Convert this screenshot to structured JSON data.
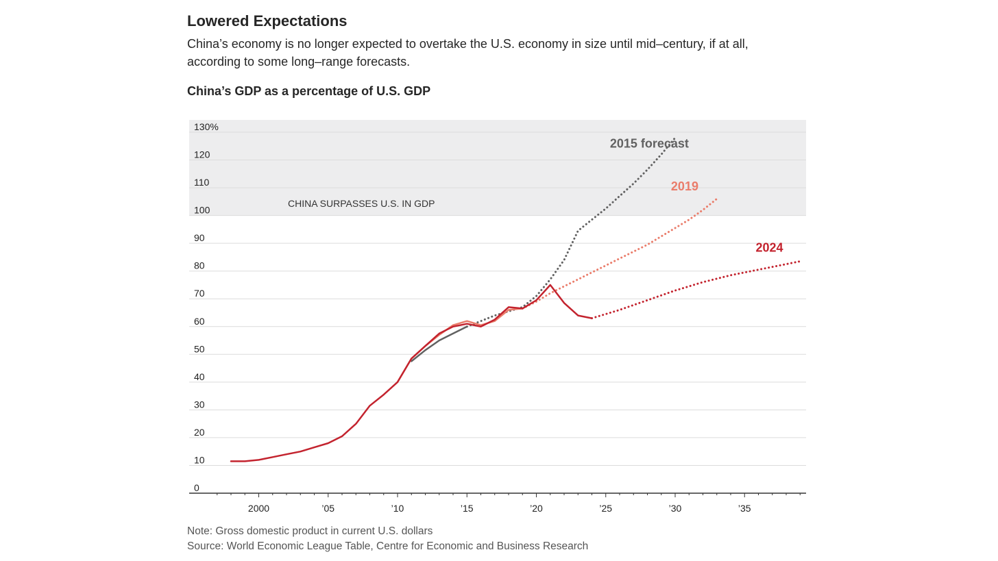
{
  "header": {
    "headline": "Lowered Expectations",
    "dek": "China’s economy is no longer expected to overtake the U.S. economy in size until mid–century, if at all, according to some long–range forecasts.",
    "chart_title": "China’s GDP as a percentage of U.S. GDP"
  },
  "footer": {
    "note": "Note: Gross domestic product in current U.S. dollars",
    "source": "Source: World Economic League Table, Centre for Economic and Business Research"
  },
  "chart_data": {
    "type": "line",
    "title": "China’s GDP as a percentage of U.S. GDP",
    "xlabel": "",
    "ylabel": "",
    "xlim": [
      1996.8,
      2039.5
    ],
    "ylim": [
      0,
      130
    ],
    "y_ticks": [
      {
        "value": 130,
        "label": "130%"
      },
      {
        "value": 120,
        "label": "120"
      },
      {
        "value": 110,
        "label": "110"
      },
      {
        "value": 100,
        "label": "100"
      },
      {
        "value": 90,
        "label": "90"
      },
      {
        "value": 80,
        "label": "80"
      },
      {
        "value": 70,
        "label": "70"
      },
      {
        "value": 60,
        "label": "60"
      },
      {
        "value": 50,
        "label": "50"
      },
      {
        "value": 40,
        "label": "40"
      },
      {
        "value": 30,
        "label": "30"
      },
      {
        "value": 20,
        "label": "20"
      },
      {
        "value": 10,
        "label": "10"
      },
      {
        "value": 0,
        "label": "0"
      }
    ],
    "x_ticks": [
      {
        "value": 2000,
        "label": "2000"
      },
      {
        "value": 2005,
        "label": "’05"
      },
      {
        "value": 2010,
        "label": "’10"
      },
      {
        "value": 2015,
        "label": "’15"
      },
      {
        "value": 2020,
        "label": "’20"
      },
      {
        "value": 2025,
        "label": "’25"
      },
      {
        "value": 2030,
        "label": "’30"
      },
      {
        "value": 2035,
        "label": "’35"
      }
    ],
    "grid": true,
    "shaded_region": {
      "y_from": 100,
      "y_to": 135,
      "label": "CHINA SURPASSES U.S. IN GDP",
      "color": "#ededee"
    },
    "colors": {
      "forecast_2015": "#616161",
      "forecast_2019": "#ea7c6a",
      "forecast_2024": "#c3232e",
      "grid": "#dcdcdc",
      "axis": "#333333"
    },
    "series": [
      {
        "name": "2015 forecast",
        "color": "#616161",
        "actual": {
          "x": [
            2011,
            2012,
            2013,
            2014,
            2015
          ],
          "y": [
            47.5,
            51.5,
            55,
            57.5,
            60
          ]
        },
        "forecast": {
          "x": [
            2015,
            2016,
            2017,
            2018,
            2019,
            2020,
            2021,
            2022,
            2023,
            2024,
            2025,
            2026,
            2027,
            2028,
            2029,
            2030
          ],
          "y": [
            60,
            62,
            64,
            65.5,
            67,
            71,
            77,
            84,
            94.5,
            98.5,
            102.5,
            107,
            111.5,
            116.5,
            122,
            128
          ]
        }
      },
      {
        "name": "2019",
        "color": "#ea7c6a",
        "actual": {
          "x": [
            2010,
            2011,
            2012,
            2013,
            2014,
            2015,
            2016,
            2017,
            2018,
            2019
          ],
          "y": [
            40,
            48.5,
            53,
            57,
            60.5,
            62,
            60.5,
            62,
            66,
            66.5
          ]
        },
        "forecast": {
          "x": [
            2019,
            2020,
            2021,
            2022,
            2023,
            2024,
            2025,
            2026,
            2027,
            2028,
            2029,
            2030,
            2031,
            2032,
            2033
          ],
          "y": [
            66.5,
            69,
            72,
            74.5,
            77,
            79.5,
            82,
            84.5,
            87,
            89.5,
            92.5,
            95.5,
            98.5,
            102,
            106
          ]
        }
      },
      {
        "name": "2024",
        "color": "#c3232e",
        "actual": {
          "x": [
            1998,
            1999,
            2000,
            2001,
            2002,
            2003,
            2004,
            2005,
            2006,
            2007,
            2008,
            2009,
            2010,
            2011,
            2012,
            2013,
            2014,
            2015,
            2016,
            2017,
            2018,
            2019,
            2020,
            2021,
            2022,
            2023,
            2024
          ],
          "y": [
            11.5,
            11.5,
            12,
            13,
            14,
            15,
            16.5,
            18,
            20.5,
            25,
            31.5,
            35.5,
            40,
            48.5,
            53,
            57.5,
            60,
            61,
            60,
            62.5,
            67,
            66.5,
            69.5,
            75,
            68.5,
            64,
            63
          ]
        },
        "forecast": {
          "x": [
            2024,
            2026,
            2028,
            2030,
            2032,
            2034,
            2036,
            2038,
            2039
          ],
          "y": [
            63,
            66,
            69.5,
            73,
            76,
            78.5,
            80.5,
            82.5,
            83.5
          ]
        }
      }
    ],
    "series_labels": [
      {
        "text": "2015 forecast",
        "x": 2025.3,
        "y": 124.5,
        "color": "#616161"
      },
      {
        "text": "2019",
        "x": 2029.7,
        "y": 109,
        "color": "#ea7c6a"
      },
      {
        "text": "2024",
        "x": 2035.8,
        "y": 87,
        "color": "#c3232e"
      }
    ]
  }
}
